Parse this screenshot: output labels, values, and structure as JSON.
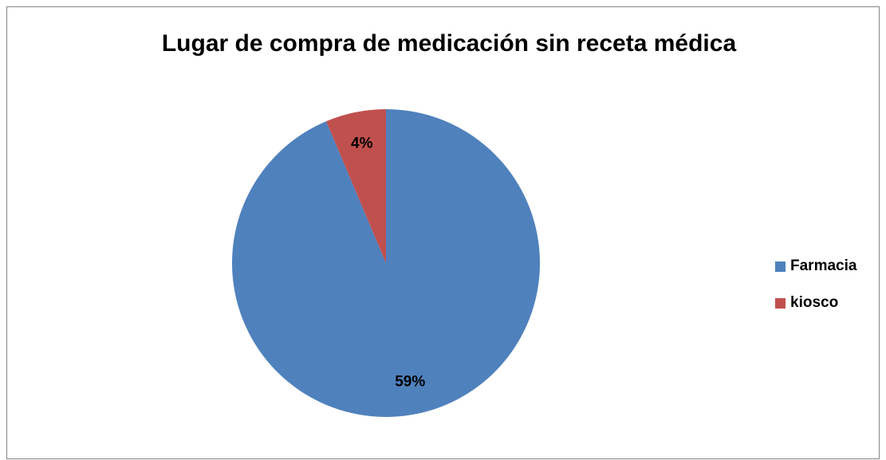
{
  "chart_data": {
    "type": "pie",
    "title": "Lugar de compra de medicación sin receta médica",
    "categories": [
      "Farmacia",
      "kiosco"
    ],
    "values": [
      59,
      4
    ],
    "value_labels": [
      "59%",
      "4%"
    ],
    "colors": [
      "#4f81bd",
      "#c0504d"
    ],
    "legend": "right"
  }
}
